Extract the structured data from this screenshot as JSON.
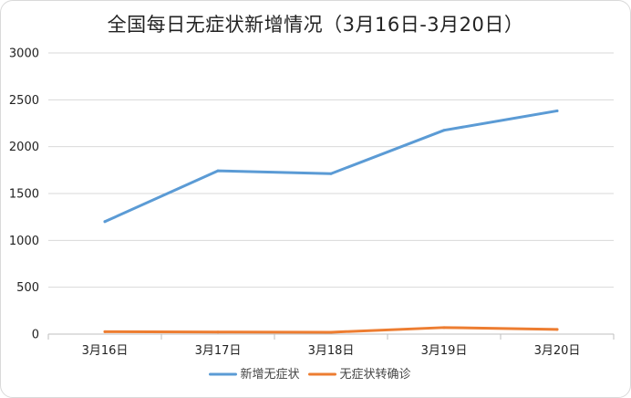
{
  "chart_data": {
    "type": "line",
    "title": "全国每日无症状新增情况（3月16日-3月20日）",
    "categories": [
      "3月16日",
      "3月17日",
      "3月18日",
      "3月19日",
      "3月20日"
    ],
    "ylim": [
      0,
      3000
    ],
    "yticks": [
      "0",
      "500",
      "1000",
      "1500",
      "2000",
      "2500",
      "3000"
    ],
    "grid": true,
    "legend_position": "bottom",
    "series": [
      {
        "name": "新增无症状",
        "color": "#5b9bd5",
        "values": [
          1200,
          1742,
          1712,
          2175,
          2382
        ]
      },
      {
        "name": "无症状转确诊",
        "color": "#ed7d31",
        "values": [
          26,
          22,
          20,
          70,
          50
        ]
      }
    ]
  }
}
